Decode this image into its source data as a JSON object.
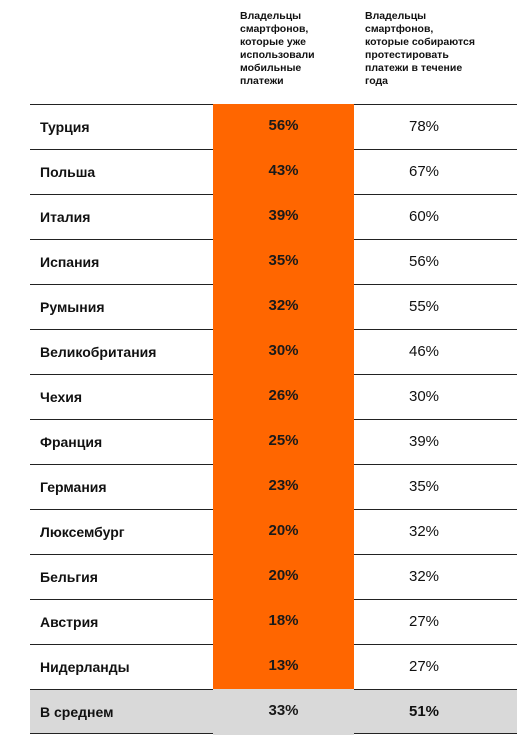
{
  "chart_data": {
    "type": "table",
    "columns": [
      "Владельцы смартфонов, которые уже использовали мобильные платежи",
      "Владельцы смартфонов, которые собираются протестировать платежи в течение года"
    ],
    "header_lines": {
      "col1": [
        "Владельцы",
        "смартфонов,",
        "которые уже",
        "использовали",
        "мобильные",
        "платежи"
      ],
      "col2": [
        "Владельцы",
        "смартфонов,",
        "которые собираются",
        "протестировать",
        "платежи в течение",
        "года"
      ]
    },
    "rows": [
      {
        "country": "Турция",
        "used": "56%",
        "plan": "78%"
      },
      {
        "country": "Польша",
        "used": "43%",
        "plan": "67%"
      },
      {
        "country": "Италия",
        "used": "39%",
        "plan": "60%"
      },
      {
        "country": "Испания",
        "used": "35%",
        "plan": "56%"
      },
      {
        "country": "Румыния",
        "used": "32%",
        "plan": "55%"
      },
      {
        "country": "Великобритания",
        "used": "30%",
        "plan": "46%"
      },
      {
        "country": "Чехия",
        "used": "26%",
        "plan": "30%"
      },
      {
        "country": "Франция",
        "used": "25%",
        "plan": "39%"
      },
      {
        "country": "Германия",
        "used": "23%",
        "plan": "35%"
      },
      {
        "country": "Люксембург",
        "used": "20%",
        "plan": "32%"
      },
      {
        "country": "Бельгия",
        "used": "20%",
        "plan": "32%"
      },
      {
        "country": "Австрия",
        "used": "18%",
        "plan": "27%"
      },
      {
        "country": "Нидерланды",
        "used": "13%",
        "plan": "27%"
      },
      {
        "country": "В среднем",
        "used": "33%",
        "plan": "51%"
      }
    ],
    "colors": {
      "highlight": "#ff6600",
      "average_row": "#d9d9d9"
    }
  }
}
